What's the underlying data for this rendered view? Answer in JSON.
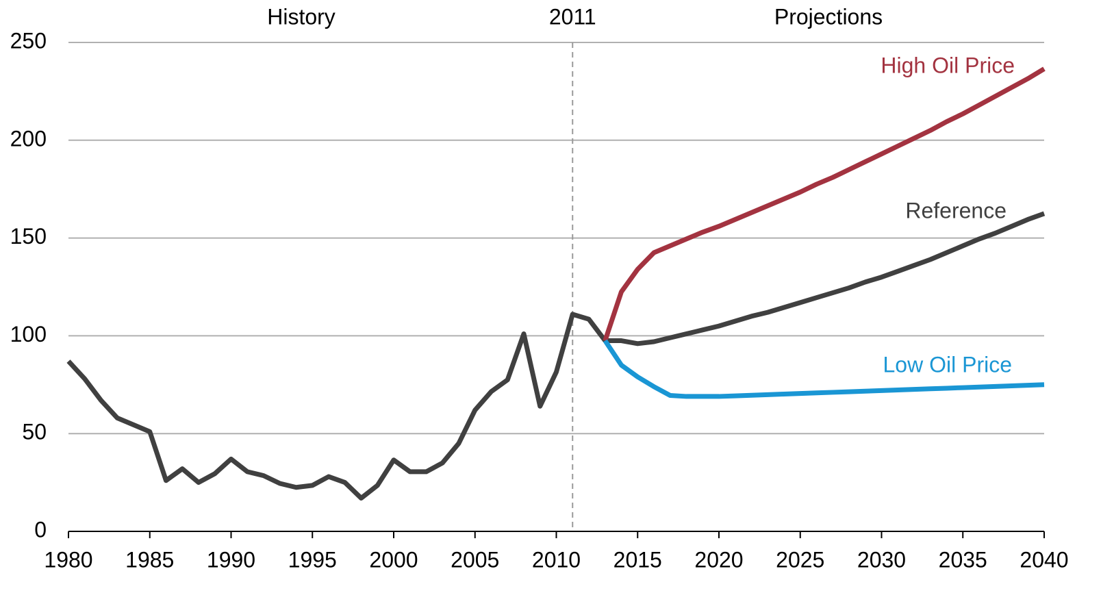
{
  "chart_data": {
    "type": "line",
    "annotations": {
      "left": "History",
      "right": "Projections"
    },
    "divider": 2011,
    "x": [
      1980,
      1981,
      1982,
      1983,
      1984,
      1985,
      1986,
      1987,
      1988,
      1989,
      1990,
      1991,
      1992,
      1993,
      1994,
      1995,
      1996,
      1997,
      1998,
      1999,
      2000,
      2001,
      2002,
      2003,
      2004,
      2005,
      2006,
      2007,
      2008,
      2009,
      2010,
      2011,
      2012,
      2013,
      2014,
      2015,
      2016,
      2017,
      2018,
      2019,
      2020,
      2021,
      2022,
      2023,
      2024,
      2025,
      2026,
      2027,
      2028,
      2029,
      2030,
      2031,
      2032,
      2033,
      2034,
      2035,
      2036,
      2037,
      2038,
      2039,
      2040
    ],
    "series": [
      {
        "name": "Reference",
        "color": "#404040",
        "values": [
          87,
          78,
          67,
          58,
          54.5,
          51,
          26,
          32,
          25,
          29.5,
          37,
          30.5,
          28.5,
          24.5,
          22.5,
          23.5,
          28,
          25,
          17,
          23.5,
          36.5,
          30.5,
          30.5,
          35,
          45,
          62,
          71.5,
          77.5,
          101,
          64,
          81.5,
          111,
          108.5,
          97.5,
          97.5,
          96,
          97,
          99,
          101,
          103,
          105,
          107.5,
          110,
          112,
          114.5,
          117,
          119.5,
          122,
          124.5,
          127.5,
          130,
          133,
          136,
          139,
          142.5,
          146,
          149.5,
          152.5,
          156,
          159.5,
          162.5
        ]
      },
      {
        "name": "High Oil Price",
        "color": "#a33340",
        "values": [
          null,
          null,
          null,
          null,
          null,
          null,
          null,
          null,
          null,
          null,
          null,
          null,
          null,
          null,
          null,
          null,
          null,
          null,
          null,
          null,
          null,
          null,
          null,
          null,
          null,
          null,
          null,
          null,
          null,
          null,
          null,
          null,
          null,
          97.5,
          122.5,
          134,
          142.5,
          146,
          149.5,
          153,
          156,
          159.5,
          163,
          166.5,
          170,
          173.5,
          177.5,
          181,
          185,
          189,
          193,
          197,
          201,
          205,
          209.5,
          213.5,
          218,
          222.5,
          227,
          231.5,
          236.5
        ]
      },
      {
        "name": "Low Oil Price",
        "color": "#1a96d4",
        "values": [
          null,
          null,
          null,
          null,
          null,
          null,
          null,
          null,
          null,
          null,
          null,
          null,
          null,
          null,
          null,
          null,
          null,
          null,
          null,
          null,
          null,
          null,
          null,
          null,
          null,
          null,
          null,
          null,
          null,
          null,
          null,
          null,
          null,
          97.5,
          85,
          79,
          74,
          69.5,
          69,
          69,
          69,
          69.3,
          69.6,
          69.9,
          70.2,
          70.5,
          70.8,
          71.1,
          71.4,
          71.7,
          72,
          72.3,
          72.6,
          72.9,
          73.2,
          73.5,
          73.8,
          74.1,
          74.4,
          74.7,
          75
        ]
      }
    ],
    "xlim": [
      1980,
      2040
    ],
    "xticks": [
      1980,
      1985,
      1990,
      1995,
      2000,
      2005,
      2010,
      2015,
      2020,
      2025,
      2030,
      2035,
      2040
    ],
    "ylim": [
      0,
      250
    ],
    "yticks": [
      0,
      50,
      100,
      150,
      200,
      250
    ],
    "grid": true
  }
}
